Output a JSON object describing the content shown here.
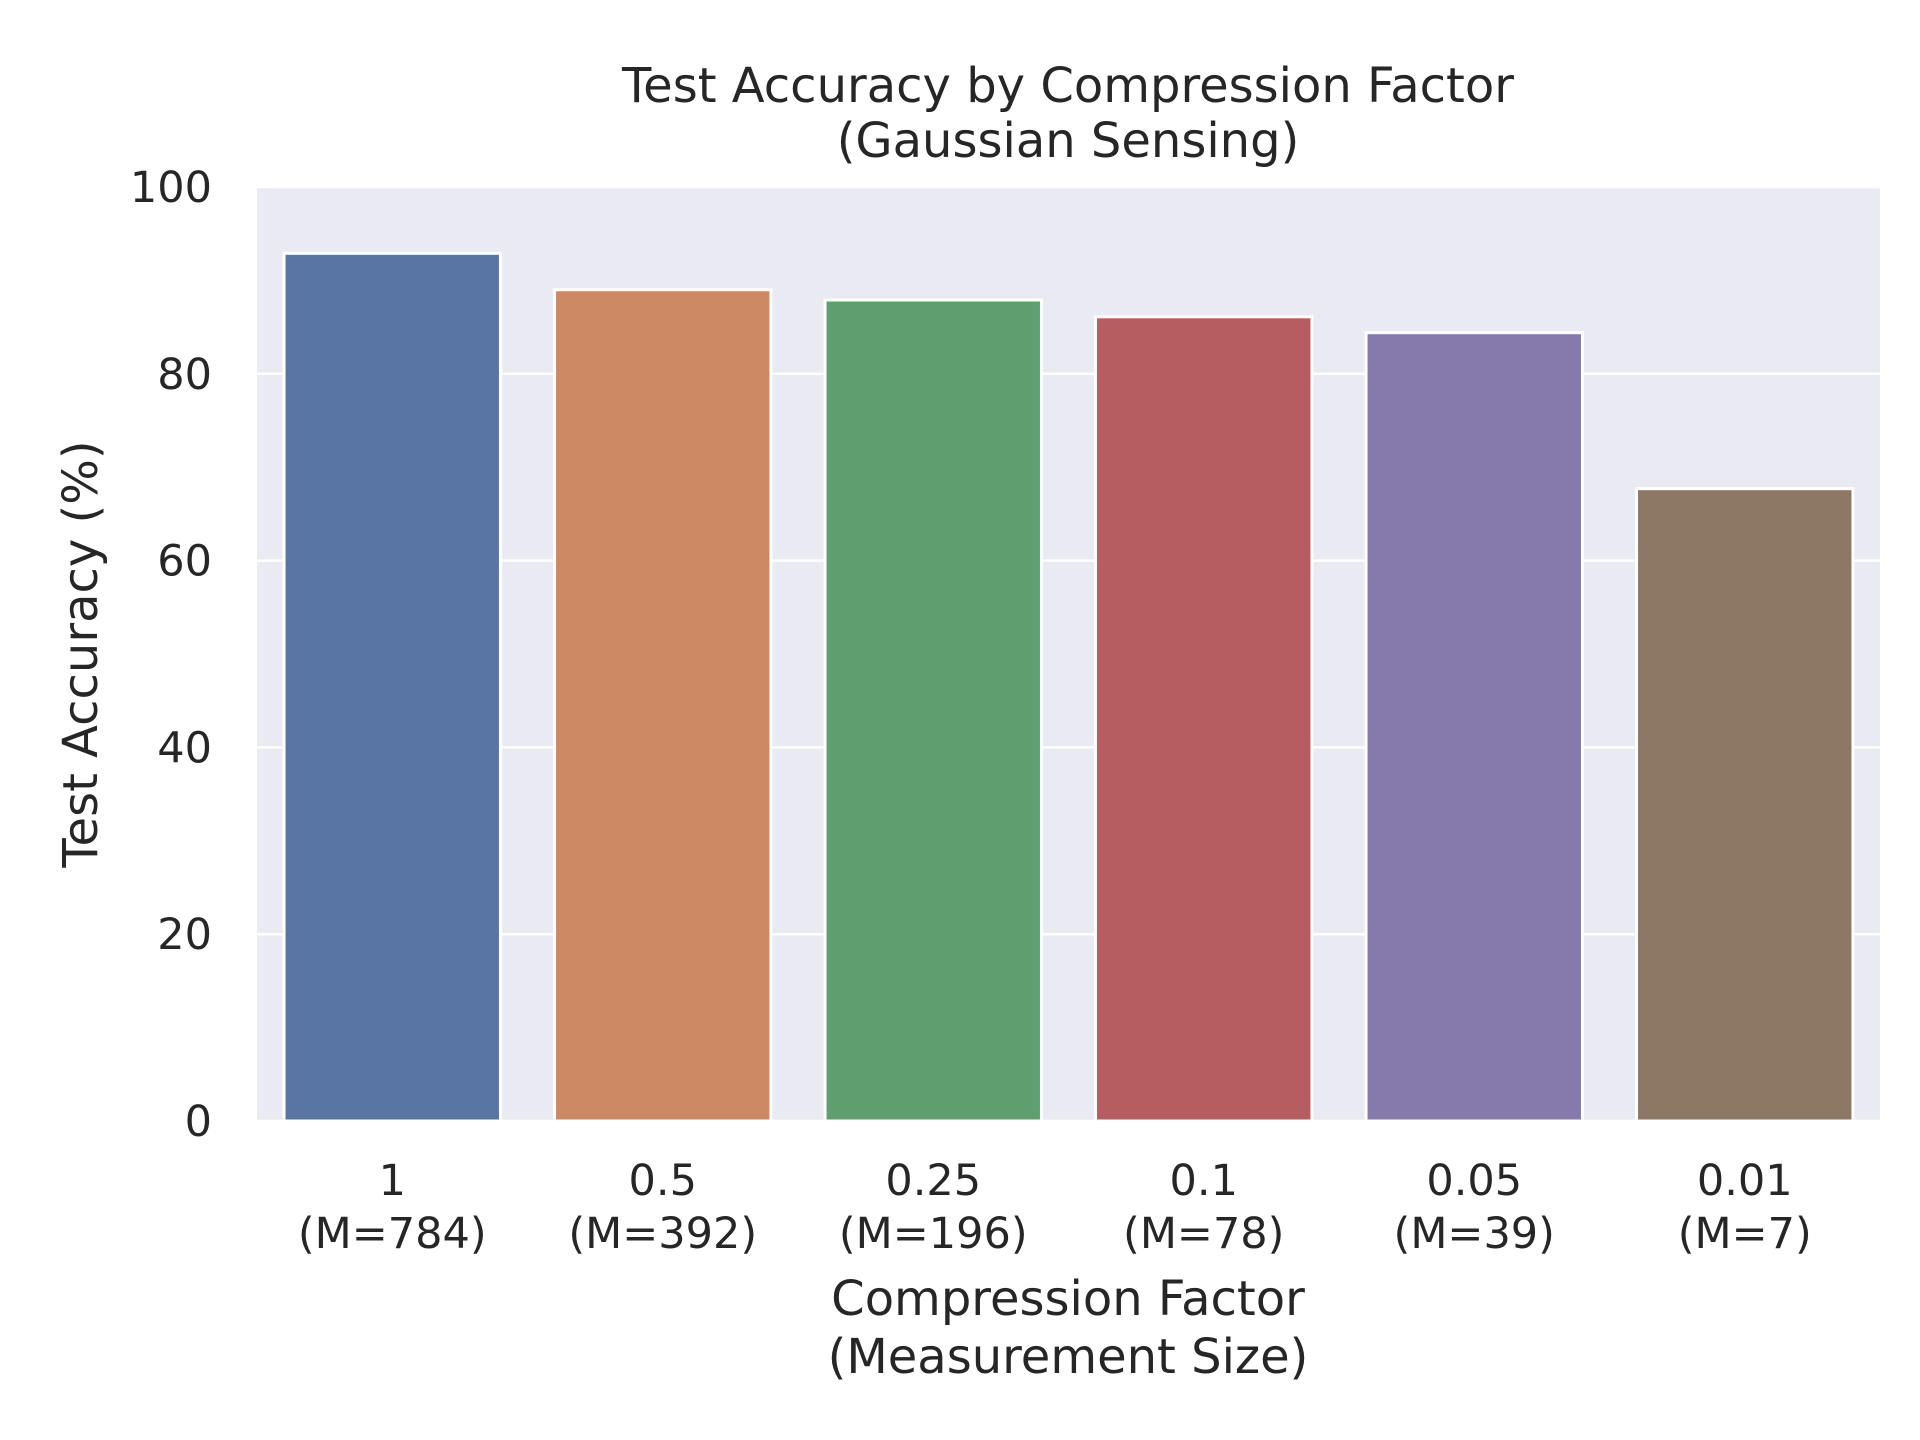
{
  "chart_data": {
    "type": "bar",
    "title": [
      "Test Accuracy by Compression Factor",
      "(Gaussian Sensing)"
    ],
    "xlabel": [
      "Compression Factor",
      "(Measurement Size)"
    ],
    "ylabel": "Test Accuracy (%)",
    "categories": [
      {
        "factor": "1",
        "measurement": "(M=784)"
      },
      {
        "factor": "0.5",
        "measurement": "(M=392)"
      },
      {
        "factor": "0.25",
        "measurement": "(M=196)"
      },
      {
        "factor": "0.1",
        "measurement": "(M=78)"
      },
      {
        "factor": "0.05",
        "measurement": "(M=39)"
      },
      {
        "factor": "0.01",
        "measurement": "(M=7)"
      }
    ],
    "values": [
      92.9,
      89.0,
      87.9,
      86.1,
      84.4,
      67.7
    ],
    "colors": [
      "#5875a4",
      "#cc8963",
      "#5f9e6e",
      "#b55d60",
      "#857aab",
      "#8d7866"
    ],
    "ylim": [
      0,
      100
    ],
    "yticks": [
      "0",
      "20",
      "40",
      "60",
      "80",
      "100"
    ],
    "grid": true,
    "background": "#eaeaf2",
    "gridColor": "#ffffff"
  }
}
